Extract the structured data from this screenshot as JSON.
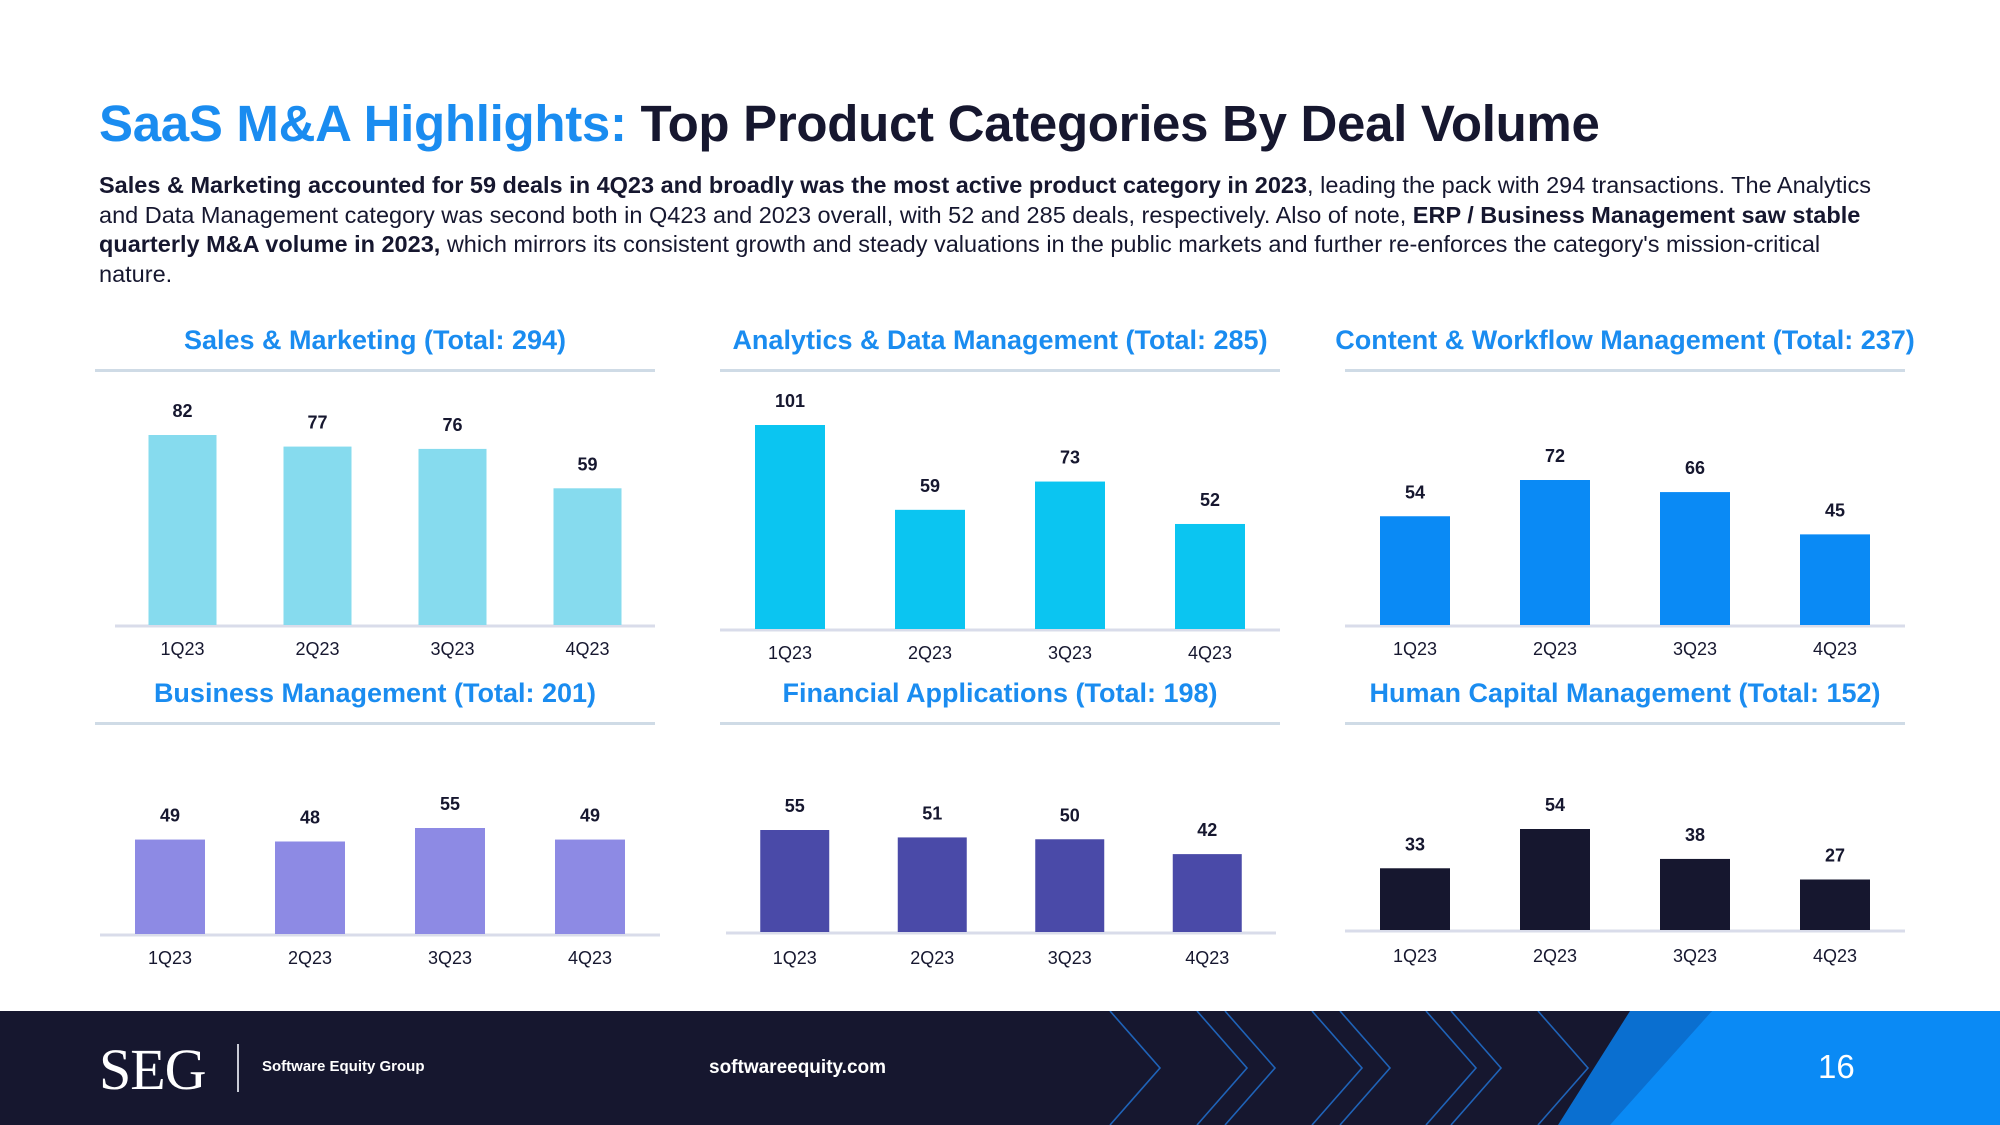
{
  "header": {
    "title_accent": "SaaS M&A Highlights:",
    "title_main": "Top Product Categories By Deal Volume"
  },
  "paragraph": [
    {
      "text": "Sales & Marketing accounted for 59 deals in 4Q23 and broadly was the most active product category in 2023",
      "bold": true
    },
    {
      "text": ", leading the pack with 294 transactions. The Analytics and Data Management category was second both in Q423 and 2023 overall, with 52 and 285 deals, respectively. Also of note, ",
      "bold": false
    },
    {
      "text": "ERP / Business Management saw stable quarterly M&A volume in 2023,",
      "bold": true
    },
    {
      "text": " which mirrors its consistent growth and steady valuations in the public markets and further re-enforces the category's mission-critical nature.",
      "bold": false
    }
  ],
  "chart_data": [
    {
      "type": "bar",
      "title": "Sales & Marketing (Total: 294)",
      "categories": [
        "1Q23",
        "2Q23",
        "3Q23",
        "4Q23"
      ],
      "values": [
        82,
        77,
        76,
        59
      ],
      "color": "#86dbee",
      "xlabel": "",
      "ylabel": "",
      "grid": false
    },
    {
      "type": "bar",
      "title": "Analytics & Data Management (Total: 285)",
      "categories": [
        "1Q23",
        "2Q23",
        "3Q23",
        "4Q23"
      ],
      "values": [
        101,
        59,
        73,
        52
      ],
      "color": "#0bc5f1",
      "xlabel": "",
      "ylabel": "",
      "grid": false
    },
    {
      "type": "bar",
      "title": "Content & Workflow Management (Total: 237)",
      "categories": [
        "1Q23",
        "2Q23",
        "3Q23",
        "4Q23"
      ],
      "values": [
        54,
        72,
        66,
        45
      ],
      "color": "#0a8af5",
      "xlabel": "",
      "ylabel": "",
      "grid": false
    },
    {
      "type": "bar",
      "title": "Business Management (Total: 201)",
      "categories": [
        "1Q23",
        "2Q23",
        "3Q23",
        "4Q23"
      ],
      "values": [
        49,
        48,
        55,
        49
      ],
      "color": "#8d8ae4",
      "xlabel": "",
      "ylabel": "",
      "grid": false
    },
    {
      "type": "bar",
      "title": "Financial Applications (Total: 198)",
      "categories": [
        "1Q23",
        "2Q23",
        "3Q23",
        "4Q23"
      ],
      "values": [
        55,
        51,
        50,
        42
      ],
      "color": "#4a4aa8",
      "xlabel": "",
      "ylabel": "",
      "grid": false
    },
    {
      "type": "bar",
      "title": "Human Capital Management (Total: 152)",
      "categories": [
        "1Q23",
        "2Q23",
        "3Q23",
        "4Q23"
      ],
      "values": [
        33,
        54,
        38,
        27
      ],
      "color": "#16172f",
      "xlabel": "",
      "ylabel": "",
      "grid": false
    }
  ],
  "footer": {
    "logo": "SEG",
    "company": "Software Equity Group",
    "website": "softwareequity.com",
    "page_number": "16"
  },
  "colors": {
    "accent_blue": "#1a8cf0",
    "navy": "#16172f",
    "footer_bright_blue": "#0a8af5"
  }
}
